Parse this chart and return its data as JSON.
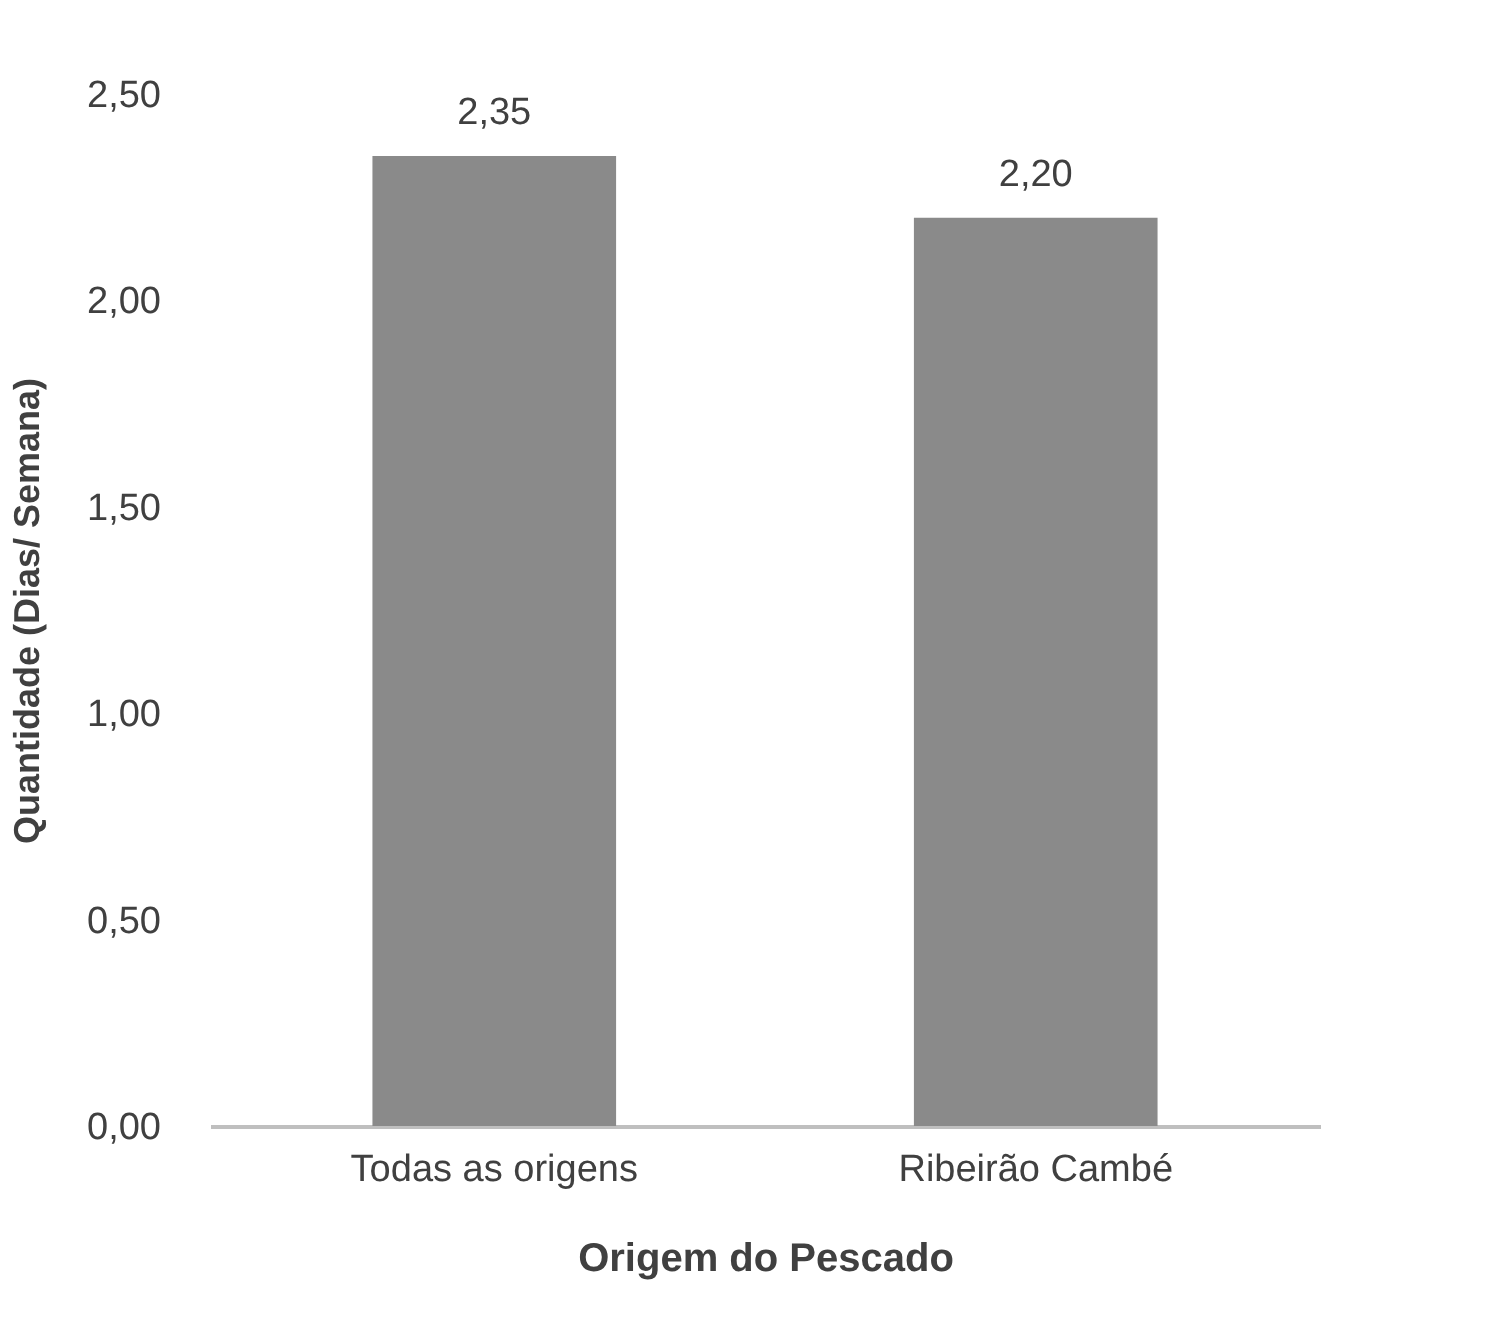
{
  "chart_data": {
    "type": "bar",
    "xlabel": "Origem do Pescado",
    "ylabel": "Quantidade (Dias/ Semana)",
    "categories": [
      "Todas as origens",
      "Ribeirão Cambé"
    ],
    "values": [
      2.35,
      2.2
    ],
    "color": "#8a8a8a",
    "value_labels": [
      "2,35",
      "2,20"
    ],
    "ylim": [
      0,
      2.5
    ],
    "yticks": [
      {
        "value": 0,
        "label": "0,00"
      },
      {
        "value": 0.5,
        "label": "0,50"
      },
      {
        "value": 1,
        "label": "1,00"
      },
      {
        "value": 1.5,
        "label": "1,50"
      },
      {
        "value": 2,
        "label": "2,00"
      },
      {
        "value": 2.5,
        "label": "2,50"
      }
    ],
    "grid": false
  }
}
